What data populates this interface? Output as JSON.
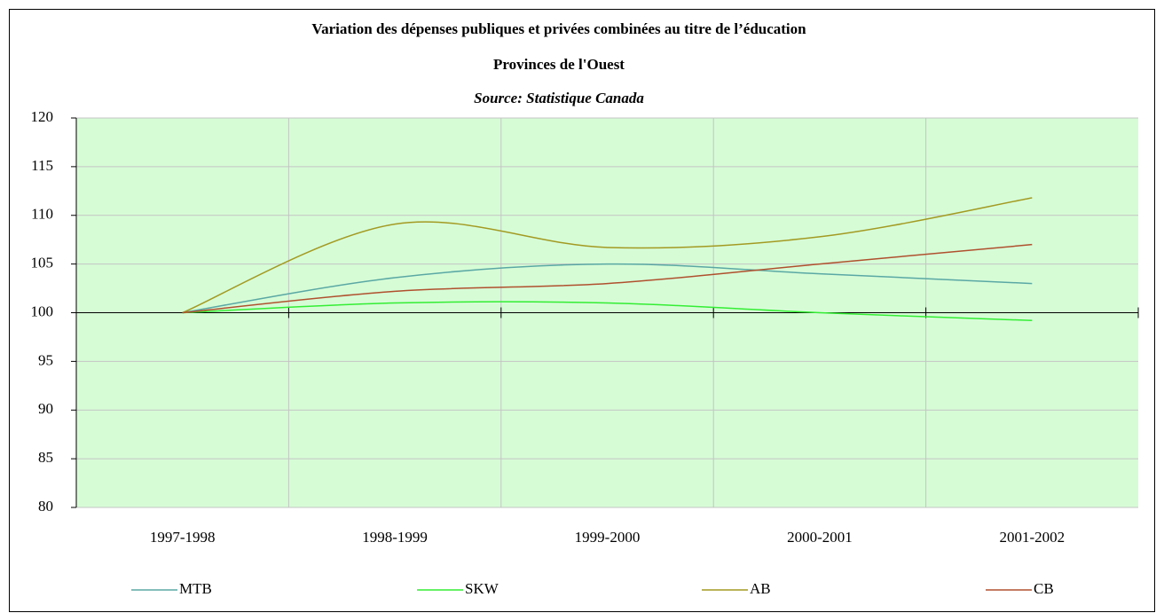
{
  "chart_data": {
    "type": "line",
    "title": "Variation des dépenses publiques et privées combinées au titre de l’éducation",
    "subtitle": "Provinces de l'Ouest",
    "source": "Source: Statistique Canada",
    "categories": [
      "1997-1998",
      "1998-1999",
      "1999-2000",
      "2000-2001",
      "2001-2002"
    ],
    "series": [
      {
        "name": "MTB",
        "color": "#5aa8a4",
        "values": [
          100,
          103.6,
          105,
          104,
          103
        ]
      },
      {
        "name": "SKW",
        "color": "#33ee33",
        "values": [
          100,
          101,
          101,
          100,
          99.2
        ]
      },
      {
        "name": "AB",
        "color": "#a39a22",
        "values": [
          100,
          109.1,
          106.7,
          107.8,
          111.8
        ]
      },
      {
        "name": "CB",
        "color": "#b0502e",
        "values": [
          100,
          102.2,
          103,
          105,
          107
        ]
      }
    ],
    "ylim": [
      80,
      120
    ],
    "yticks": [
      80,
      85,
      90,
      95,
      100,
      105,
      110,
      115,
      120
    ],
    "x_axis_crosses": 100,
    "grid": true,
    "smooth": true,
    "legend": "bottom"
  }
}
